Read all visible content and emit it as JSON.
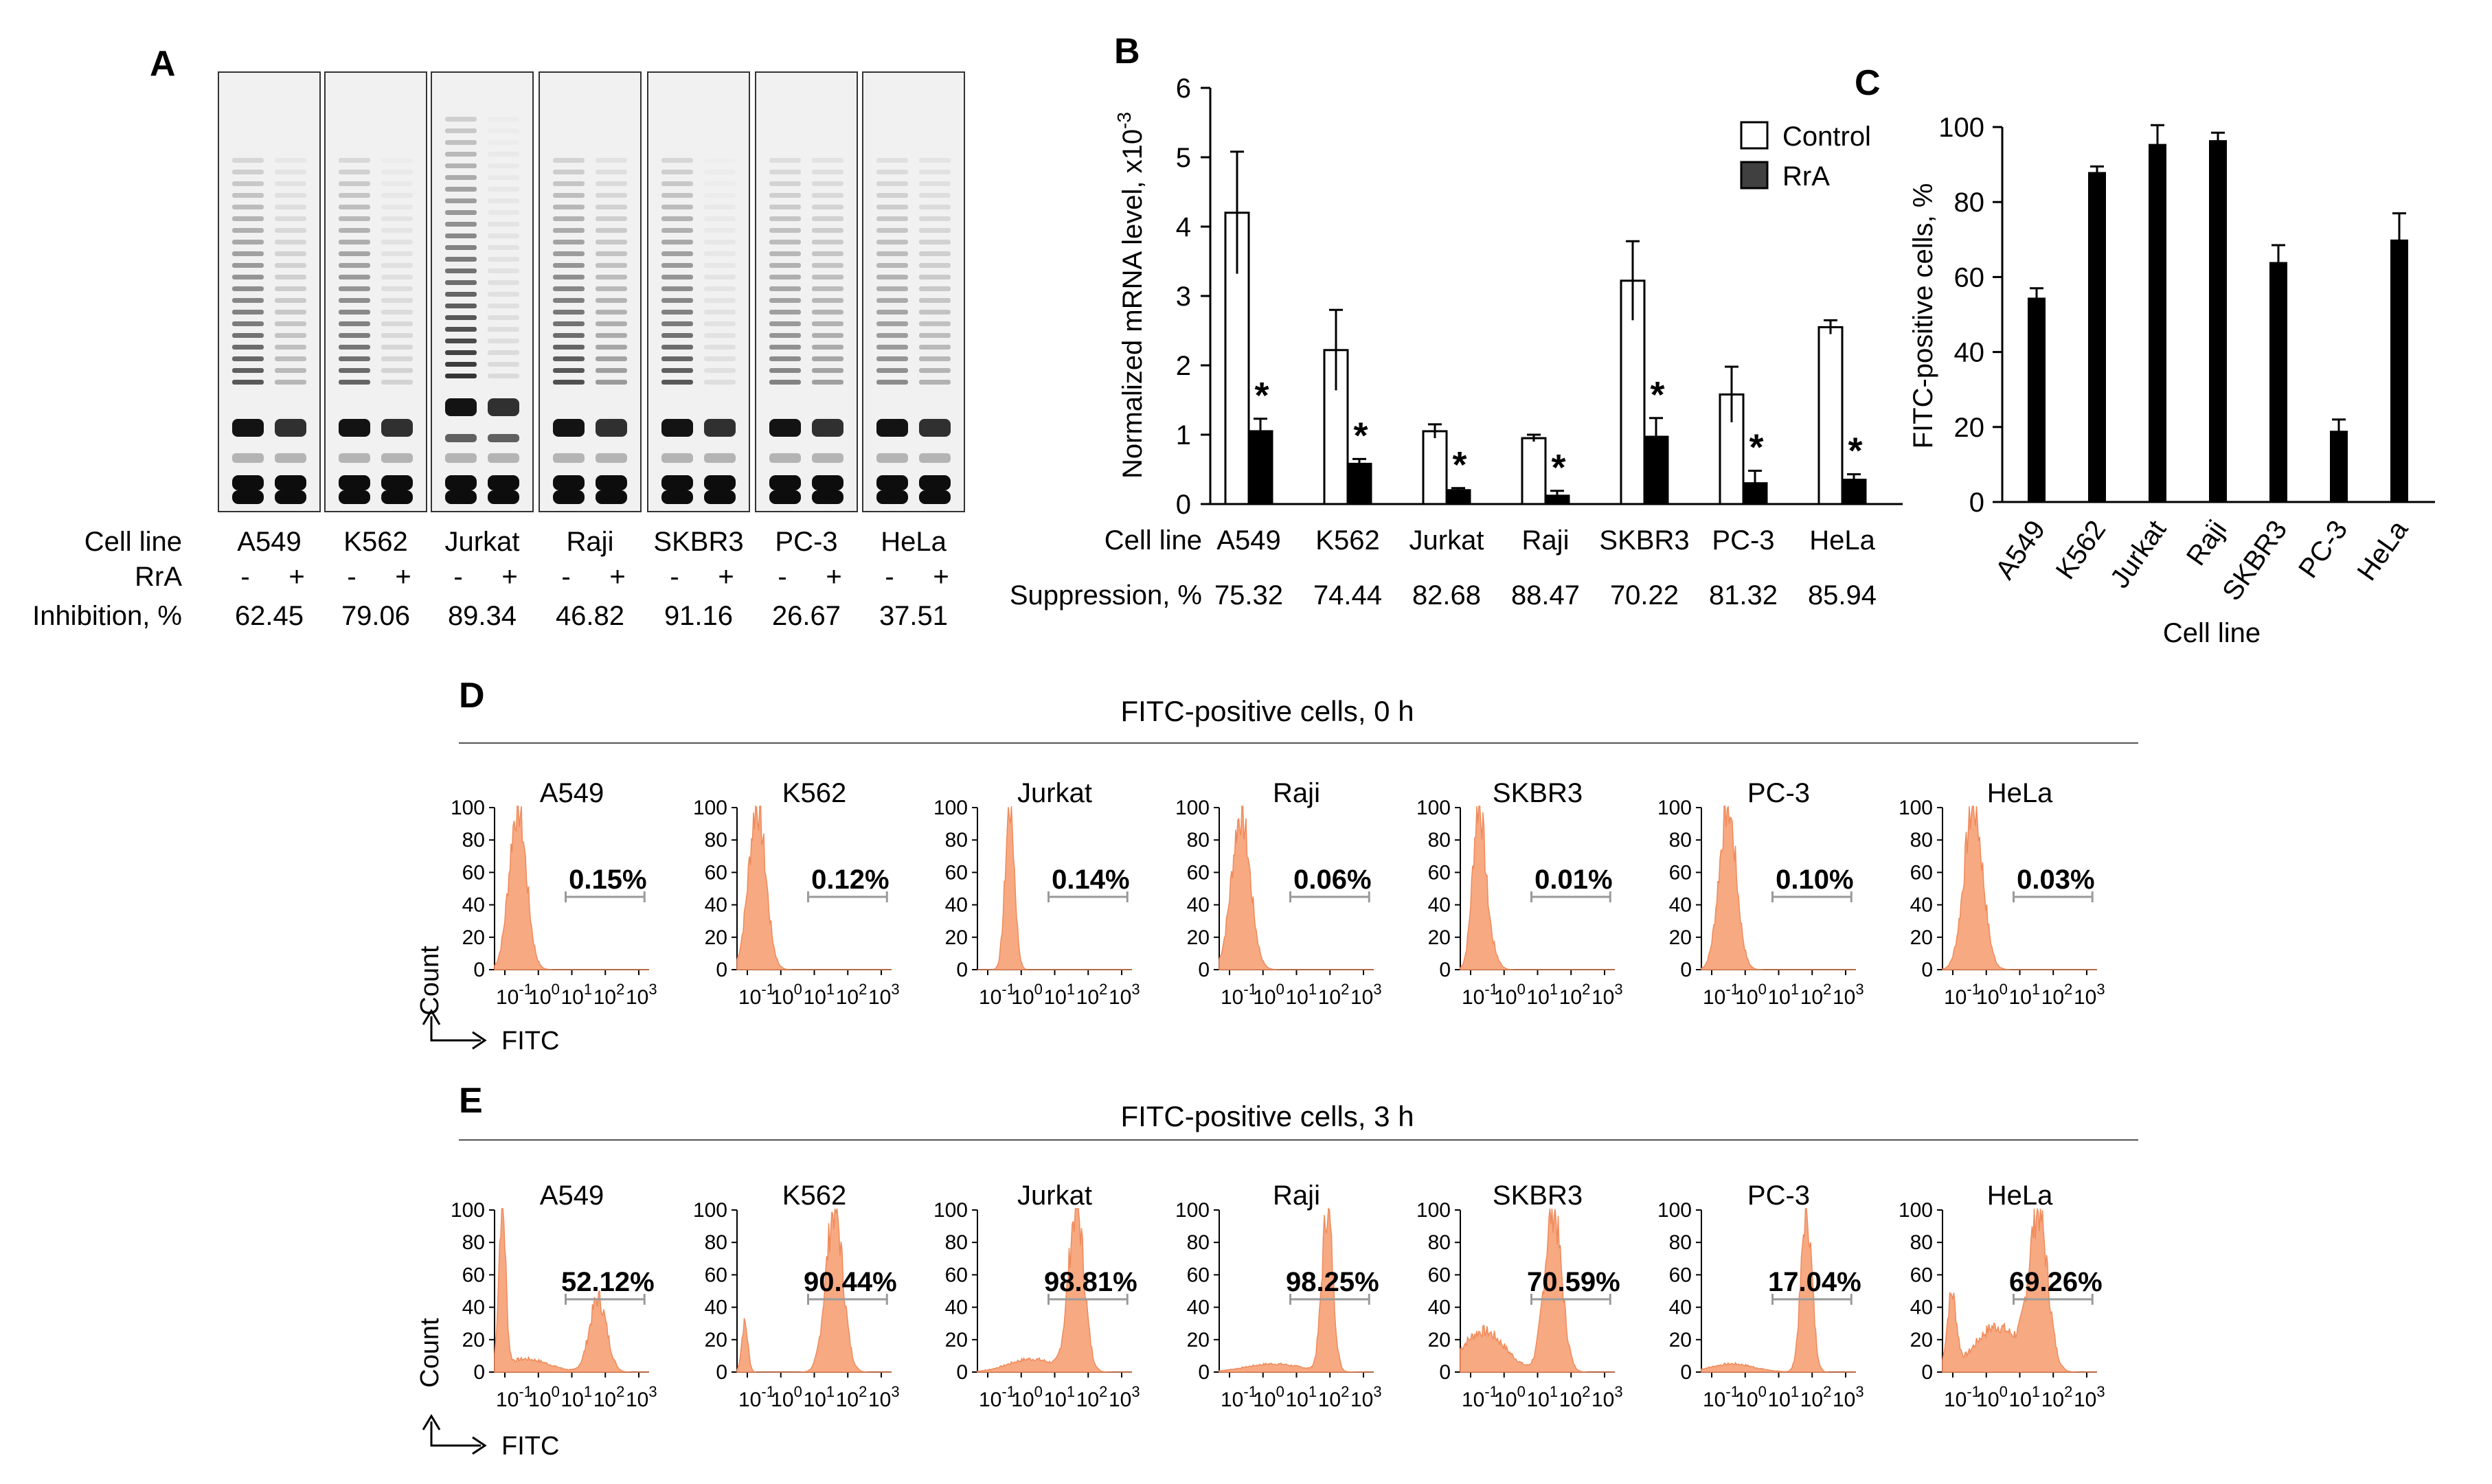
{
  "colors": {
    "hist_fill": "#f7a982",
    "hist_edge": "#f08a5a",
    "bar_dark": "#000000",
    "bar_light": "#ffffff",
    "gate": "#9a9a9a",
    "gel_bg": "#f1f1f1",
    "legend_rra": "#404040"
  },
  "cell_lines": [
    "A549",
    "K562",
    "Jurkat",
    "Raji",
    "SKBR3",
    "PC-3",
    "HeLa"
  ],
  "panel_a": {
    "label": "A",
    "row_cell_line": "Cell line",
    "row_rra": "RrA",
    "row_inhibition": "Inhibition, %",
    "minus": "-",
    "plus": "+",
    "inhibition": [
      "62.45",
      "79.06",
      "89.34",
      "46.82",
      "91.16",
      "26.67",
      "37.51"
    ]
  },
  "panel_b": {
    "label": "B",
    "row_cell_line": "Cell line",
    "row_suppression": "Suppression, %",
    "suppression": [
      "75.32",
      "74.44",
      "82.68",
      "88.47",
      "70.22",
      "81.32",
      "85.94"
    ],
    "legend": [
      "Control",
      "RrA"
    ],
    "star": "*",
    "chart_data": {
      "type": "bar",
      "title": "",
      "categories": [
        "A549",
        "K562",
        "Jurkat",
        "Raji",
        "SKBR3",
        "PC-3",
        "HeLa"
      ],
      "series": [
        {
          "name": "Control",
          "values": [
            4.2,
            2.22,
            1.05,
            0.95,
            3.22,
            1.58,
            2.55
          ],
          "errors": [
            0.88,
            0.58,
            0.1,
            0.05,
            0.57,
            0.4,
            0.1
          ]
        },
        {
          "name": "RrA",
          "values": [
            1.05,
            0.58,
            0.2,
            0.12,
            0.97,
            0.3,
            0.35
          ],
          "errors": [
            0.18,
            0.07,
            0.03,
            0.07,
            0.27,
            0.18,
            0.08
          ]
        }
      ],
      "ylabel": "Normalized mRNA level, x10",
      "ylabel_exp": "-3",
      "xlabel": "Cell line",
      "ylim": [
        0,
        6
      ],
      "yticks": [
        "0",
        "1",
        "2",
        "3",
        "4",
        "5",
        "6"
      ]
    }
  },
  "panel_c": {
    "label": "C",
    "chart_data": {
      "type": "bar",
      "title": "",
      "categories": [
        "A549",
        "K562",
        "Jurkat",
        "Raji",
        "SKBR3",
        "PC-3",
        "HeLa"
      ],
      "values": [
        54.5,
        88,
        95.5,
        96.5,
        64,
        19,
        70
      ],
      "errors": [
        2.5,
        1.5,
        5,
        2,
        4.5,
        3,
        7
      ],
      "ylabel": "FITC-positive cells, %",
      "xlabel": "Cell line",
      "ylim": [
        0,
        100
      ],
      "yticks": [
        "0",
        "20",
        "40",
        "60",
        "80",
        "100"
      ]
    }
  },
  "panel_d": {
    "label": "D",
    "title": "FITC-positive cells, 0 h",
    "percents": [
      "0.15%",
      "0.12%",
      "0.14%",
      "0.06%",
      "0.01%",
      "0.10%",
      "0.03%"
    ]
  },
  "panel_e": {
    "label": "E",
    "title": "FITC-positive cells, 3 h",
    "percents": [
      "52.12%",
      "90.44%",
      "98.81%",
      "98.25%",
      "70.59%",
      "17.04%",
      "69.26%"
    ]
  },
  "histogram": {
    "yticks": [
      "0",
      "20",
      "40",
      "60",
      "80",
      "100"
    ],
    "xtick_base": "10",
    "xtick_exps": [
      "-1",
      "0",
      "1",
      "2",
      "3"
    ],
    "y_axis_label": "Count",
    "x_axis_label": "FITC"
  }
}
